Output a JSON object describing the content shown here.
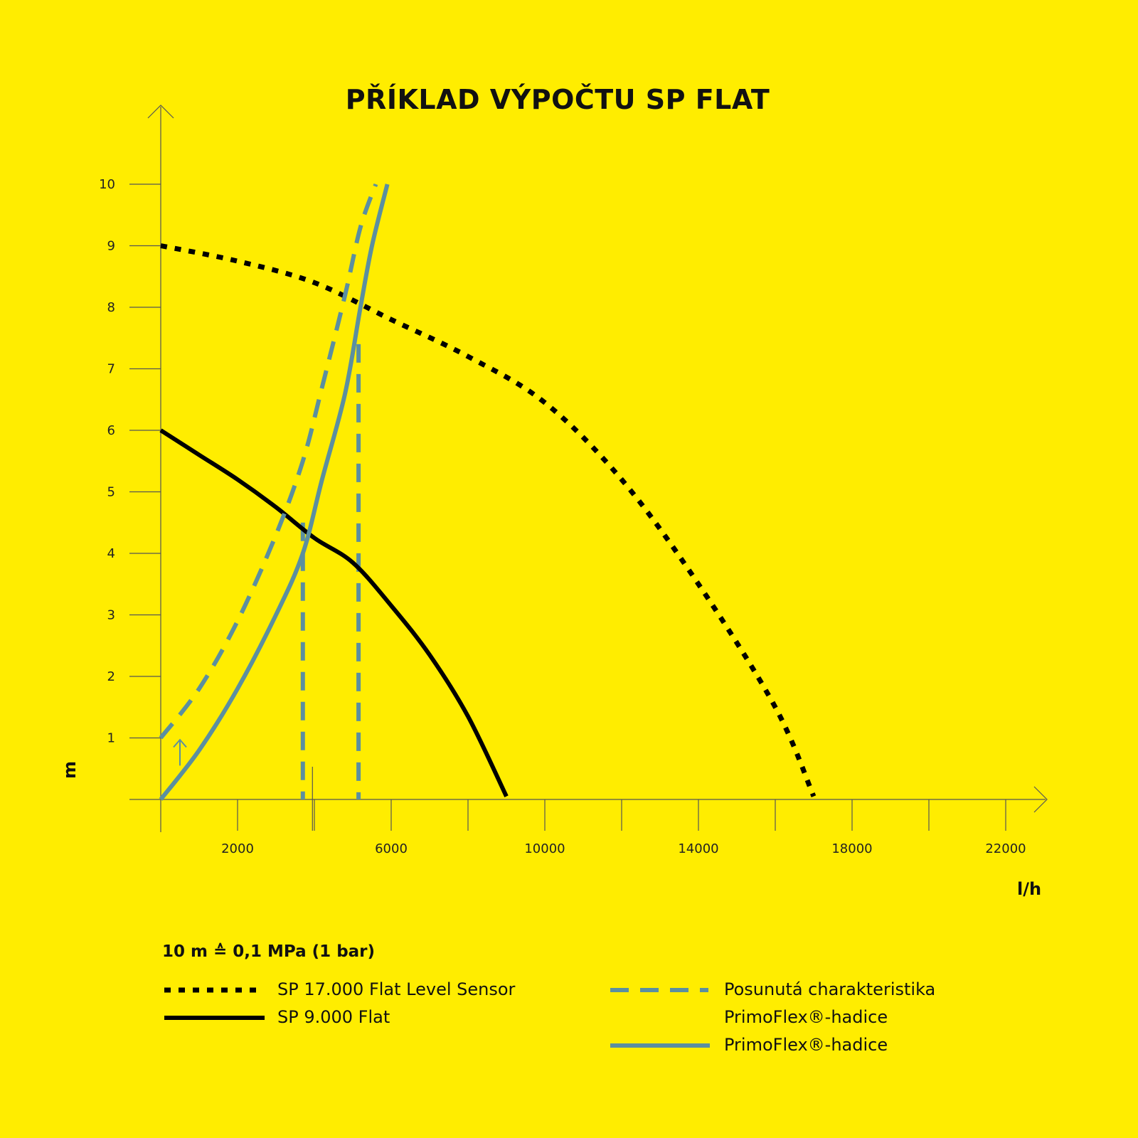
{
  "title": "PŘÍKLAD VÝPOČTU SP FLAT",
  "note": "10 m ≙ 0,1 MPa (1 bar)",
  "colors": {
    "background": "#FFED00",
    "black": "#000000",
    "blue": "#5B8FA0",
    "axis": "#555555"
  },
  "chart_data": {
    "type": "line",
    "title": "PŘÍKLAD VÝPOČTU SP FLAT",
    "xlabel": "l/h",
    "ylabel": "m",
    "xlim": [
      0,
      23000
    ],
    "ylim": [
      0,
      10
    ],
    "x_ticks": [
      2000,
      6000,
      10000,
      14000,
      18000,
      22000
    ],
    "y_ticks": [
      1,
      2,
      3,
      4,
      5,
      6,
      7,
      8,
      9,
      10
    ],
    "grid": false,
    "legend_position": "bottom",
    "series": [
      {
        "name": "SP 17.000 Flat Level Sensor",
        "style": "dotted",
        "color": "#000000",
        "x": [
          0,
          2000,
          4000,
          6000,
          8000,
          10000,
          12000,
          14000,
          16000,
          17000
        ],
        "y": [
          9.0,
          8.75,
          8.4,
          7.8,
          7.2,
          6.45,
          5.2,
          3.5,
          1.5,
          0.05
        ]
      },
      {
        "name": "SP 9.000 Flat",
        "style": "solid",
        "color": "#000000",
        "x": [
          0,
          1000,
          2000,
          3000,
          4000,
          5000,
          6000,
          7000,
          8000,
          9000
        ],
        "y": [
          6.0,
          5.6,
          5.2,
          4.75,
          4.25,
          3.85,
          3.15,
          2.35,
          1.35,
          0.05
        ]
      },
      {
        "name": "Posunutá charakteristika PrimoFlex®-hadice",
        "style": "dashed",
        "color": "#5B8FA0",
        "x": [
          0,
          1000,
          2000,
          3000,
          3700,
          4200,
          4800,
          5200,
          5600
        ],
        "y": [
          1.0,
          1.8,
          2.9,
          4.3,
          5.5,
          6.7,
          8.2,
          9.3,
          10.0
        ]
      },
      {
        "name": "PrimoFlex®-hadice",
        "style": "solid",
        "color": "#5B8FA0",
        "x": [
          0,
          1000,
          2000,
          3000,
          3700,
          4200,
          4800,
          5200,
          5500,
          5900
        ],
        "y": [
          0,
          0.8,
          1.8,
          3.0,
          4.0,
          5.2,
          6.6,
          8.0,
          9.0,
          10.0
        ]
      }
    ],
    "markers": [
      {
        "type": "vline",
        "x": 3700,
        "ymax": 4.5,
        "color": "#5B8FA0",
        "style": "dashed"
      },
      {
        "type": "vline",
        "x": 5150,
        "ymax": 7.4,
        "color": "#5B8FA0",
        "style": "dashed"
      }
    ]
  },
  "legend": [
    {
      "label": "SP 17.000 Flat Level Sensor",
      "style": "dotted",
      "color": "#000000"
    },
    {
      "label": "SP 9.000 Flat",
      "style": "solid",
      "color": "#000000"
    },
    {
      "label": "Posunutá charakteristika",
      "style": "dashed",
      "color": "#5B8FA0"
    },
    {
      "label": "PrimoFlex®-hadice",
      "style": "none",
      "color": "#5B8FA0"
    },
    {
      "label": "PrimoFlex®-hadice",
      "style": "solid",
      "color": "#5B8FA0"
    }
  ]
}
